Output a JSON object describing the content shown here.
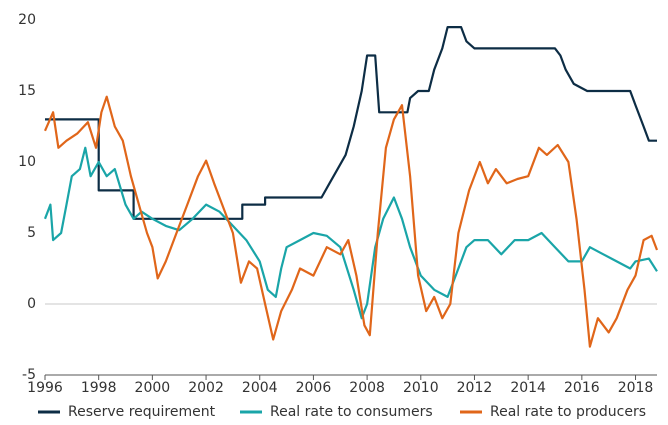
{
  "chart_data": {
    "type": "line",
    "xlim": [
      1996,
      2018.8
    ],
    "xticks": [
      1996,
      1998,
      2000,
      2002,
      2004,
      2006,
      2008,
      2010,
      2012,
      2014,
      2016,
      2018
    ],
    "ylim": [
      -5,
      20
    ],
    "yticks": [
      -5,
      0,
      5,
      10,
      15,
      20
    ],
    "zero_line": true,
    "legend": "bottom",
    "series": [
      {
        "name": "Reserve requirement",
        "color": "#0d2d45",
        "x": [
          1996,
          1998,
          1998,
          1999.3,
          1999.3,
          2003.35,
          2003.35,
          2004.2,
          2004.2,
          2006.3,
          2006.6,
          2006.9,
          2007.2,
          2007.5,
          2007.8,
          2008.0,
          2008.3,
          2008.45,
          2009.5,
          2009.6,
          2009.9,
          2010.3,
          2010.5,
          2010.8,
          2011.0,
          2011.5,
          2011.7,
          2012.0,
          2015.0,
          2015.2,
          2015.4,
          2015.7,
          2016.2,
          2017.8,
          2018.0,
          2018.3,
          2018.5,
          2018.8
        ],
        "values": [
          13,
          13,
          8,
          8,
          6,
          6,
          7,
          7,
          7.5,
          7.5,
          8.5,
          9.5,
          10.5,
          12.5,
          15,
          17.5,
          17.5,
          13.5,
          13.5,
          14.5,
          15,
          15,
          16.5,
          18,
          19.5,
          19.5,
          18.5,
          18,
          18,
          17.5,
          16.5,
          15.5,
          15,
          15,
          14,
          12.5,
          11.5,
          11.5
        ]
      },
      {
        "name": "Real rate to consumers",
        "color": "#1aa5a8",
        "x": [
          1996,
          1996.2,
          1996.3,
          1996.6,
          1996.8,
          1997.0,
          1997.3,
          1997.5,
          1997.7,
          1998.0,
          1998.3,
          1998.6,
          1999.0,
          1999.3,
          1999.6,
          2000.0,
          2000.5,
          2001.0,
          2001.5,
          2002.0,
          2002.5,
          2003.0,
          2003.5,
          2004.0,
          2004.3,
          2004.6,
          2004.8,
          2005.0,
          2005.5,
          2006.0,
          2006.5,
          2007.0,
          2007.5,
          2007.8,
          2008.0,
          2008.3,
          2008.6,
          2009.0,
          2009.3,
          2009.6,
          2010.0,
          2010.5,
          2011.0,
          2011.3,
          2011.7,
          2012.0,
          2012.5,
          2013.0,
          2013.5,
          2014.0,
          2014.5,
          2015.0,
          2015.5,
          2016.0,
          2016.3,
          2016.8,
          2017.3,
          2017.8,
          2018.0,
          2018.5,
          2018.8
        ],
        "values": [
          6,
          7,
          4.5,
          5,
          7,
          9,
          9.5,
          11,
          9,
          10,
          9,
          9.5,
          7,
          6,
          6.5,
          6,
          5.5,
          5.2,
          6,
          7,
          6.5,
          5.5,
          4.5,
          3,
          1,
          0.5,
          2.5,
          4,
          4.5,
          5,
          4.8,
          4,
          1,
          -1,
          0,
          4,
          6,
          7.5,
          6,
          4,
          2,
          1,
          0.5,
          2,
          4,
          4.5,
          4.5,
          3.5,
          4.5,
          4.5,
          5,
          4,
          3,
          3,
          4,
          3.5,
          3,
          2.5,
          3,
          3.2,
          2.3
        ]
      },
      {
        "name": "Real rate to producers",
        "color": "#e0661a",
        "x": [
          1996,
          1996.3,
          1996.5,
          1996.8,
          1997.2,
          1997.6,
          1997.9,
          1998.1,
          1998.3,
          1998.6,
          1998.9,
          1999.2,
          1999.5,
          1999.8,
          2000.0,
          2000.2,
          2000.5,
          2000.9,
          2001.3,
          2001.7,
          2002.0,
          2002.3,
          2002.6,
          2003.0,
          2003.3,
          2003.6,
          2003.9,
          2004.2,
          2004.5,
          2004.8,
          2005.2,
          2005.5,
          2006.0,
          2006.5,
          2007.0,
          2007.3,
          2007.6,
          2007.9,
          2008.1,
          2008.4,
          2008.7,
          2009.0,
          2009.3,
          2009.6,
          2009.9,
          2010.2,
          2010.5,
          2010.8,
          2011.1,
          2011.4,
          2011.8,
          2012.2,
          2012.5,
          2012.8,
          2013.2,
          2013.6,
          2014.0,
          2014.4,
          2014.7,
          2015.1,
          2015.5,
          2015.8,
          2016.1,
          2016.3,
          2016.6,
          2017.0,
          2017.3,
          2017.7,
          2018.0,
          2018.3,
          2018.6,
          2018.8
        ],
        "values": [
          12.2,
          13.5,
          11,
          11.5,
          12,
          12.8,
          11,
          13.5,
          14.6,
          12.5,
          11.5,
          9,
          7,
          5,
          4,
          1.8,
          3,
          5,
          7,
          9,
          10.1,
          8.5,
          7,
          5,
          1.5,
          3,
          2.5,
          0,
          -2.5,
          -0.5,
          1,
          2.5,
          2,
          4,
          3.5,
          4.5,
          2,
          -1.5,
          -2.2,
          5,
          11,
          13,
          14,
          9,
          2,
          -0.5,
          0.5,
          -1,
          0,
          5,
          8,
          10,
          8.5,
          9.5,
          8.5,
          8.8,
          9,
          11,
          10.5,
          11.2,
          10,
          6,
          1,
          -3,
          -1,
          -2,
          -1,
          1,
          2,
          4.5,
          4.8,
          3.8
        ]
      }
    ]
  }
}
